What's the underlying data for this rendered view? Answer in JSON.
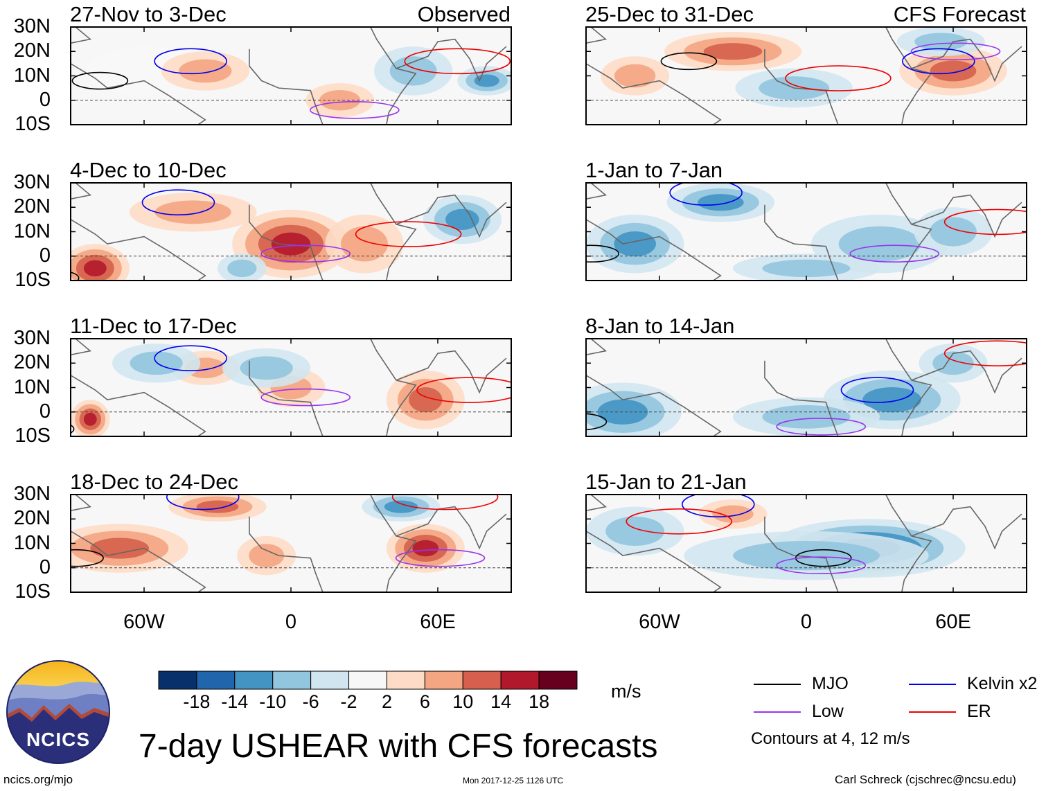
{
  "chart_data": {
    "type": "heatmap",
    "title": "7-day USHEAR with CFS forecasts",
    "variable": "7-day USHEAR",
    "units": "m/s",
    "lat_labels": [
      "30N",
      "20N",
      "10N",
      "0",
      "10S"
    ],
    "lon_labels": [
      "60W",
      "0",
      "60E"
    ],
    "lat_range": [
      -10,
      30
    ],
    "lon_range": [
      -90,
      90
    ],
    "colorbar": {
      "levels": [
        "-18",
        "-14",
        "-10",
        "-6",
        "-2",
        "2",
        "6",
        "10",
        "14",
        "18"
      ],
      "colors": [
        "#08306b",
        "#2166ac",
        "#4393c3",
        "#92c5de",
        "#d1e5f0",
        "#f7f7f7",
        "#fddbc7",
        "#f4a582",
        "#d6604d",
        "#b2182b",
        "#67001f"
      ]
    },
    "columns": [
      {
        "label": "Observed",
        "panels": [
          {
            "period": "27-Nov to 3-Dec"
          },
          {
            "period": "4-Dec to 10-Dec"
          },
          {
            "period": "11-Dec to 17-Dec"
          },
          {
            "period": "18-Dec to 24-Dec"
          }
        ]
      },
      {
        "label": "CFS Forecast",
        "panels": [
          {
            "period": "25-Dec to 31-Dec"
          },
          {
            "period": "1-Jan to 7-Jan"
          },
          {
            "period": "8-Jan to 14-Jan"
          },
          {
            "period": "15-Jan to 21-Jan"
          }
        ]
      }
    ],
    "legend": [
      {
        "label": "MJO",
        "color": "#000000"
      },
      {
        "label": "Kelvin x2",
        "color": "#0000ee"
      },
      {
        "label": "Low",
        "color": "#9933ee"
      },
      {
        "label": "ER",
        "color": "#ee0000"
      }
    ],
    "contour_note": "Contours at 4, 12 m/s"
  },
  "footer": {
    "logo_text": "NCICS",
    "url": "ncics.org/mjo",
    "timestamp": "Mon 2017-12-25 1126 UTC",
    "credit": "Carl Schreck (cjschrec@ncsu.edu)"
  }
}
